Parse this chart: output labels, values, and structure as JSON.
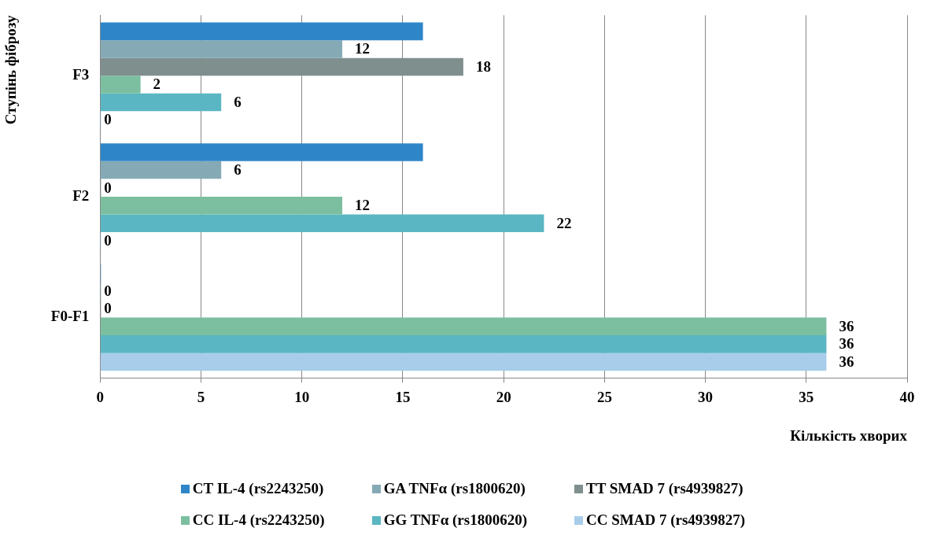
{
  "chart_data": {
    "type": "bar",
    "orientation": "horizontal",
    "xlabel": "Кількість хворих",
    "ylabel": "Ступінь фіброзу",
    "categories": [
      "F3",
      "F2",
      "F0-F1"
    ],
    "series": [
      {
        "name": "CT IL-4 (rs2243250)",
        "color": "#2e86c9",
        "values": [
          16,
          16,
          0
        ],
        "value_labels": [
          null,
          null,
          null
        ]
      },
      {
        "name": "GA TNFα (rs1800620)",
        "color": "#86aab5",
        "values": [
          12,
          6,
          0
        ],
        "value_labels": [
          "12",
          "6",
          "0"
        ]
      },
      {
        "name": "TT SMAD 7 (rs4939827)",
        "color": "#7f8f8e",
        "values": [
          18,
          0,
          0
        ],
        "value_labels": [
          "18",
          "0",
          "0"
        ]
      },
      {
        "name": "CC IL-4 (rs2243250)",
        "color": "#7bbfa0",
        "values": [
          2,
          12,
          36
        ],
        "value_labels": [
          "2",
          "12",
          "36"
        ]
      },
      {
        "name": "GG TNFα (rs1800620)",
        "color": "#5ab6c2",
        "values": [
          6,
          22,
          36
        ],
        "value_labels": [
          "6",
          "22",
          "36"
        ]
      },
      {
        "name": "CC SMAD 7 (rs4939827)",
        "color": "#a8cdeb",
        "values": [
          0,
          0,
          36
        ],
        "value_labels": [
          "0",
          "0",
          "36"
        ]
      }
    ],
    "xlim": [
      0,
      40
    ],
    "xticks": [
      0,
      5,
      10,
      15,
      20,
      25,
      30,
      35,
      40
    ],
    "grid": "x",
    "legend": "bottom"
  }
}
